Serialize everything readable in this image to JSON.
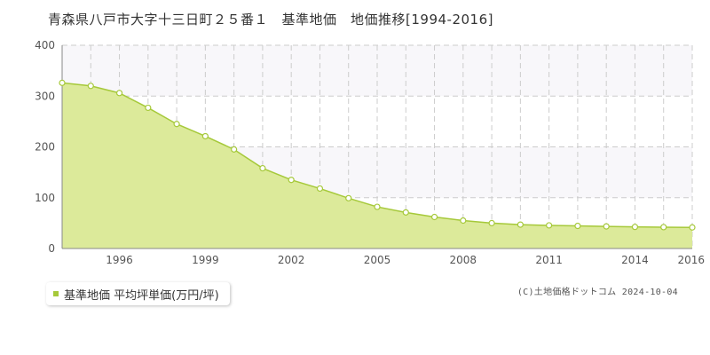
{
  "chart_data": {
    "type": "area",
    "title": "青森県八戸市大字十三日町２５番１　基準地価　地価推移[1994-2016]",
    "x": [
      1994,
      1995,
      1996,
      1997,
      1998,
      1999,
      2000,
      2001,
      2002,
      2003,
      2004,
      2005,
      2006,
      2007,
      2008,
      2009,
      2010,
      2011,
      2012,
      2013,
      2014,
      2015,
      2016
    ],
    "series": [
      {
        "name": "基準地価 平均坪単価(万円/坪)",
        "values": [
          326,
          320,
          306,
          277,
          245,
          221,
          195,
          158,
          135,
          118,
          99,
          82,
          71,
          62,
          55,
          50,
          47,
          45.5,
          44.5,
          43.5,
          42.5,
          42,
          41.5
        ]
      }
    ],
    "xlim": [
      1994,
      2016
    ],
    "ylim": [
      0,
      400
    ],
    "y_ticks": [
      0,
      100,
      200,
      300,
      400
    ],
    "x_ticks": [
      1996,
      1999,
      2002,
      2005,
      2008,
      2011,
      2014,
      2016
    ],
    "grid": true,
    "legend_position": "bottom-left",
    "colors": {
      "fill": "#dcea9a",
      "line": "#a6c93a",
      "marker_fill": "#ffffff",
      "band": "#f8f7fa",
      "grid": "#cccccc"
    }
  },
  "legend_label": "基準地価 平均坪単価(万円/坪)",
  "copyright": "(C)土地価格ドットコム 2024-10-04"
}
